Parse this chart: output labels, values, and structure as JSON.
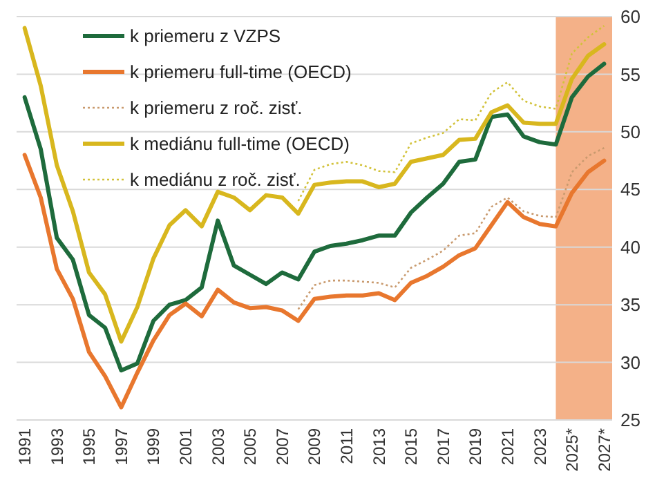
{
  "chart_data": {
    "type": "line",
    "x": [
      1991,
      1992,
      1993,
      1994,
      1995,
      1996,
      1997,
      1998,
      1999,
      2000,
      2001,
      2002,
      2003,
      2004,
      2005,
      2006,
      2007,
      2008,
      2009,
      2010,
      2011,
      2012,
      2013,
      2014,
      2015,
      2016,
      2017,
      2018,
      2019,
      2020,
      2021,
      2022,
      2023,
      2024,
      2025,
      2026,
      2027
    ],
    "series": [
      {
        "name": "k priemeru z VZPS",
        "color": "#1e6b3c",
        "values": [
          53.0,
          48.5,
          40.8,
          38.9,
          34.1,
          33.0,
          29.3,
          29.9,
          33.6,
          35.0,
          35.4,
          36.5,
          42.3,
          38.4,
          37.6,
          36.8,
          37.8,
          37.2,
          39.6,
          40.1,
          40.3,
          40.6,
          41.0,
          41.0,
          43.0,
          44.3,
          45.5,
          47.4,
          47.6,
          51.3,
          51.5,
          49.6,
          49.1,
          48.9,
          53.0,
          54.8,
          55.9
        ]
      },
      {
        "name": "k priemeru full-time (OECD)",
        "color": "#e8772e",
        "values": [
          48.0,
          44.3,
          38.1,
          35.5,
          30.9,
          28.8,
          26.1,
          29.1,
          31.9,
          34.1,
          35.1,
          34.0,
          36.3,
          35.2,
          34.7,
          34.8,
          34.5,
          33.6,
          35.5,
          35.7,
          35.8,
          35.8,
          36.0,
          35.4,
          36.9,
          37.5,
          38.3,
          39.3,
          39.9,
          41.9,
          43.9,
          42.6,
          42.0,
          41.8,
          44.7,
          46.5,
          47.5
        ]
      },
      {
        "name": "k priemeru z roč. zisť.",
        "color": "#c99a6e",
        "line_style": "dotted",
        "values": [
          null,
          null,
          null,
          null,
          null,
          null,
          null,
          null,
          null,
          null,
          null,
          null,
          null,
          null,
          null,
          null,
          null,
          34.6,
          36.7,
          37.1,
          37.1,
          37.0,
          36.9,
          36.5,
          38.2,
          38.9,
          39.7,
          41.0,
          41.2,
          43.5,
          44.3,
          43.1,
          42.7,
          42.6,
          46.5,
          47.9,
          48.6
        ]
      },
      {
        "name": "k mediánu full-time (OECD)",
        "color": "#d8b71e",
        "values": [
          59.0,
          54.0,
          47.1,
          43.1,
          37.8,
          35.9,
          31.8,
          34.8,
          39.0,
          41.9,
          43.2,
          41.8,
          44.8,
          44.3,
          43.2,
          44.5,
          44.3,
          42.9,
          45.4,
          45.6,
          45.7,
          45.7,
          45.2,
          45.5,
          47.4,
          47.7,
          48.0,
          49.3,
          49.4,
          51.7,
          52.3,
          50.8,
          50.7,
          50.7,
          54.6,
          56.6,
          57.6
        ]
      },
      {
        "name": "k mediánu z roč. zisť.",
        "color": "#d2c23a",
        "line_style": "dotted",
        "values": [
          null,
          null,
          null,
          null,
          null,
          null,
          null,
          null,
          null,
          null,
          null,
          null,
          null,
          null,
          null,
          null,
          null,
          44.0,
          46.7,
          47.2,
          47.4,
          47.1,
          46.6,
          46.5,
          49.0,
          49.5,
          49.9,
          51.1,
          51.0,
          53.4,
          54.3,
          52.7,
          52.2,
          52.0,
          56.8,
          58.2,
          59.2
        ]
      }
    ],
    "xlim": [
      1990.5,
      2027.5
    ],
    "xticks": [
      1991,
      1993,
      1995,
      1997,
      1999,
      2001,
      2003,
      2005,
      2007,
      2009,
      2011,
      2013,
      2015,
      2017,
      2019,
      2021,
      2023,
      {
        "value": 2025,
        "label": "2025*"
      },
      {
        "value": 2027,
        "label": "2027*"
      }
    ],
    "ylim": [
      25,
      60
    ],
    "yticks": [
      25,
      30,
      35,
      40,
      45,
      50,
      55,
      60
    ],
    "bands": [
      {
        "axis": "x",
        "from": 2024,
        "to": 2027.5,
        "color": "#f4b188"
      }
    ],
    "grid": "y",
    "legend": "top left"
  }
}
